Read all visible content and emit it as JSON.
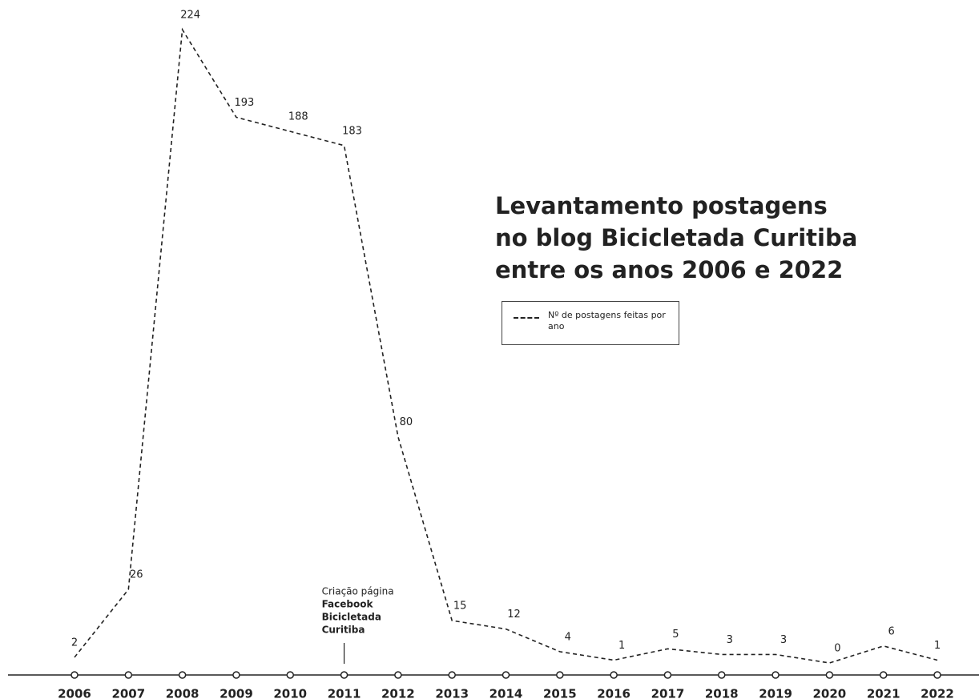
{
  "chart_data": {
    "type": "line",
    "title": [
      "Levantamento postagens",
      "no blog Bicicletada Curitiba",
      "entre os anos 2006 e 2022"
    ],
    "categories": [
      "2006",
      "2007",
      "2008",
      "2009",
      "2010",
      "2011",
      "2012",
      "2013",
      "2014",
      "2015",
      "2016",
      "2017",
      "2018",
      "2019",
      "2020",
      "2021",
      "2022"
    ],
    "series": [
      {
        "name": "Nº de postagens feitas por ano",
        "color": "#222222",
        "values": [
          2,
          26,
          224,
          193,
          188,
          183,
          80,
          15,
          12,
          4,
          1,
          5,
          3,
          3,
          0,
          6,
          1
        ]
      }
    ],
    "annotation": {
      "category": "2011",
      "lines": [
        "Criação página",
        "Facebook",
        "Bicicletada",
        "Curitiba"
      ]
    }
  }
}
